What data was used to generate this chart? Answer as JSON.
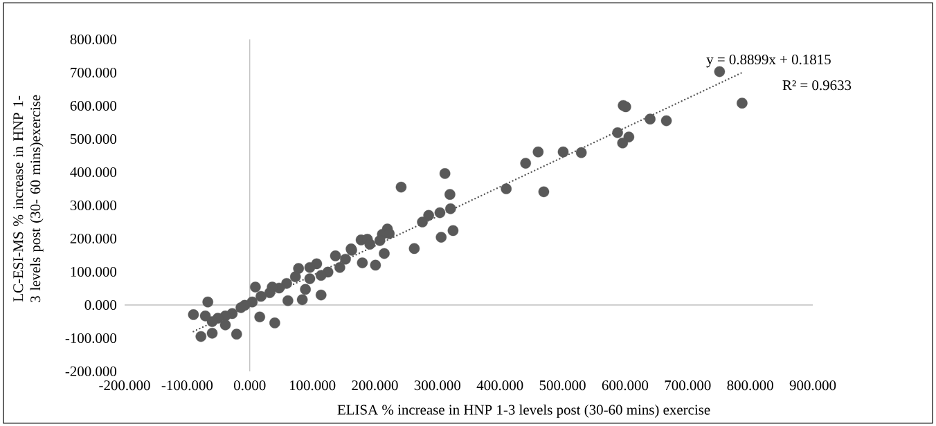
{
  "chart_data": {
    "type": "scatter",
    "xlabel": "ELISA % increase in HNP 1-3 levels post (30-60 mins) exercise",
    "ylabel": "LC-ESI-MS % increase in HNP 1-3 levels post (30- 60 mins)exercise",
    "annotations": [
      "y = 0.8899x + 0.1815",
      "R² = 0.9633"
    ],
    "xlim": [
      -200,
      900
    ],
    "ylim": [
      -200,
      800
    ],
    "xticks": [
      {
        "value": -200,
        "label": "-200.000"
      },
      {
        "value": -100,
        "label": "-100.000"
      },
      {
        "value": 0,
        "label": "0.000"
      },
      {
        "value": 100,
        "label": "100.000"
      },
      {
        "value": 200,
        "label": "200.000"
      },
      {
        "value": 300,
        "label": "300.000"
      },
      {
        "value": 400,
        "label": "400.000"
      },
      {
        "value": 500,
        "label": "500.000"
      },
      {
        "value": 600,
        "label": "600.000"
      },
      {
        "value": 700,
        "label": "700.000"
      },
      {
        "value": 800,
        "label": "800.000"
      },
      {
        "value": 900,
        "label": "900.000"
      }
    ],
    "yticks": [
      {
        "value": -200,
        "label": "-200.000"
      },
      {
        "value": -100,
        "label": "-100.000"
      },
      {
        "value": 0,
        "label": "0.000"
      },
      {
        "value": 100,
        "label": "100.000"
      },
      {
        "value": 200,
        "label": "200.000"
      },
      {
        "value": 300,
        "label": "300.000"
      },
      {
        "value": 400,
        "label": "400.000"
      },
      {
        "value": 500,
        "label": "500.000"
      },
      {
        "value": 600,
        "label": "600.000"
      },
      {
        "value": 700,
        "label": "700.000"
      },
      {
        "value": 800,
        "label": "800.000"
      }
    ],
    "series": [
      {
        "color": "#595959",
        "marker": "circle",
        "x": [
          751,
          787,
          597,
          601,
          640,
          666,
          588,
          606,
          596,
          461,
          501,
          530,
          441,
          410,
          470,
          312,
          242,
          320,
          321,
          304,
          286,
          276,
          325,
          306,
          263,
          220,
          212,
          223,
          178,
          188,
          208,
          192,
          162,
          215,
          201,
          180,
          163,
          153,
          137,
          144,
          125,
          114,
          107,
          96,
          114,
          96,
          84,
          78,
          73,
          89,
          61,
          59,
          47,
          36,
          32,
          18,
          9,
          4,
          -8,
          -14,
          16,
          40,
          -28,
          -21,
          -39,
          -51,
          -60,
          -67,
          -71,
          -90,
          -78,
          -60,
          -39
        ],
        "values": [
          703,
          608,
          601,
          597,
          560,
          555,
          519,
          506,
          488,
          461,
          461,
          459,
          427,
          350,
          341,
          396,
          355,
          333,
          290,
          278,
          270,
          250,
          224,
          204,
          170,
          229,
          213,
          215,
          196,
          198,
          194,
          183,
          169,
          155,
          120,
          127,
          165,
          138,
          148,
          113,
          99,
          89,
          124,
          113,
          30,
          79,
          16,
          110,
          85,
          47,
          13,
          65,
          51,
          54,
          37,
          26,
          54,
          9,
          -1,
          -8,
          -36,
          -54,
          -26,
          -88,
          -33,
          -40,
          -50,
          9,
          -33,
          -29,
          -95,
          -85,
          -60
        ]
      },
      {
        "type": "line",
        "color": "#595959",
        "line_style": "dotted",
        "marker": "none",
        "x": [
          -90,
          787
        ],
        "values": [
          -80,
          700
        ]
      }
    ]
  }
}
